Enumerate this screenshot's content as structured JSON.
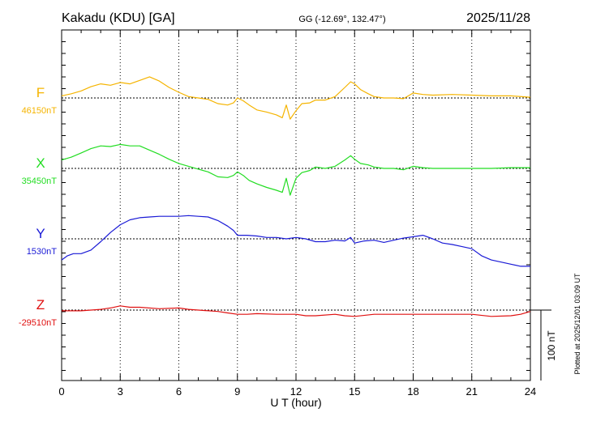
{
  "header": {
    "station": "Kakadu (KDU)  [GA]",
    "coords": "GG (-12.69°, 132.47°)",
    "date": "2025/11/28"
  },
  "footer": {
    "plotted": "Plotted at 2025/12/01 03:09 UT"
  },
  "chart_data": {
    "type": "line",
    "xlabel": "U T (hour)",
    "xlim": [
      0,
      24
    ],
    "xticks": [
      0,
      3,
      6,
      9,
      12,
      15,
      18,
      21,
      24
    ],
    "scale_bar": {
      "label": "100 nT",
      "value_nT": 100
    },
    "colors": {
      "F": "#f5b400",
      "X": "#22dd22",
      "Y": "#1a1ad6",
      "Z": "#e01010"
    },
    "series": [
      {
        "name": "F",
        "baseline_label": "46150nT",
        "baseline_nT": 46150,
        "x": [
          0,
          0.5,
          1,
          1.5,
          2,
          2.5,
          3,
          3.5,
          4,
          4.5,
          5,
          5.5,
          6,
          6.5,
          7,
          7.5,
          8,
          8.5,
          8.8,
          9,
          9.3,
          9.6,
          10,
          10.5,
          11,
          11.3,
          11.5,
          11.7,
          12,
          12.3,
          12.7,
          13,
          13.5,
          14,
          14.5,
          14.8,
          15,
          15.3,
          15.7,
          16,
          16.5,
          17,
          17.5,
          18,
          18.5,
          19,
          20,
          21,
          22,
          23,
          24
        ],
        "values": [
          46153,
          46156,
          46160,
          46166,
          46170,
          46168,
          46172,
          46170,
          46175,
          46180,
          46174,
          46165,
          46158,
          46152,
          46150,
          46148,
          46142,
          46140,
          46143,
          46150,
          46146,
          46140,
          46133,
          46130,
          46126,
          46122,
          46140,
          46120,
          46132,
          46142,
          46143,
          46147,
          46147,
          46152,
          46165,
          46173,
          46170,
          46162,
          46156,
          46152,
          46150,
          46150,
          46149,
          46157,
          46155,
          46154,
          46155,
          46154,
          46153,
          46153,
          46151
        ]
      },
      {
        "name": "X",
        "baseline_label": "35450nT",
        "baseline_nT": 35450,
        "x": [
          0,
          0.5,
          1,
          1.5,
          2,
          2.5,
          3,
          3.5,
          4,
          4.5,
          5,
          5.5,
          6,
          6.5,
          7,
          7.5,
          8,
          8.5,
          8.8,
          9,
          9.3,
          9.6,
          10,
          10.5,
          11,
          11.3,
          11.5,
          11.7,
          12,
          12.3,
          12.7,
          13,
          13.5,
          14,
          14.5,
          14.8,
          15,
          15.3,
          15.7,
          16,
          16.5,
          17,
          17.5,
          18,
          18.5,
          19,
          20,
          21,
          22,
          23,
          24
        ],
        "values": [
          35462,
          35466,
          35472,
          35478,
          35482,
          35481,
          35484,
          35482,
          35482,
          35476,
          35470,
          35463,
          35457,
          35453,
          35449,
          35445,
          35438,
          35437,
          35440,
          35445,
          35440,
          35433,
          35428,
          35423,
          35419,
          35416,
          35436,
          35412,
          35436,
          35444,
          35447,
          35452,
          35450,
          35453,
          35462,
          35468,
          35463,
          35457,
          35455,
          35452,
          35450,
          35450,
          35448,
          35453,
          35451,
          35450,
          35450,
          35450,
          35450,
          35451,
          35451
        ]
      },
      {
        "name": "Y",
        "baseline_label": "1530nT",
        "baseline_nT": 1530,
        "x": [
          0,
          0.3,
          0.6,
          1,
          1.5,
          2,
          2.5,
          3,
          3.5,
          4,
          4.5,
          5,
          5.5,
          6,
          6.5,
          7,
          7.5,
          8,
          8.5,
          8.8,
          9,
          9.5,
          10,
          10.5,
          11,
          11.5,
          12,
          12.5,
          13,
          13.5,
          14,
          14.5,
          14.8,
          15,
          15.5,
          16,
          16.5,
          17,
          17.5,
          18,
          18.5,
          19,
          19.5,
          20,
          20.5,
          21,
          21.5,
          22,
          22.5,
          23,
          23.5,
          24
        ],
        "values": [
          1500,
          1506,
          1509,
          1509,
          1514,
          1526,
          1539,
          1550,
          1557,
          1560,
          1561,
          1562,
          1562,
          1562,
          1563,
          1562,
          1561,
          1556,
          1548,
          1542,
          1535,
          1535,
          1534,
          1532,
          1532,
          1530,
          1532,
          1530,
          1526,
          1526,
          1528,
          1527,
          1532,
          1524,
          1527,
          1528,
          1525,
          1528,
          1531,
          1533,
          1535,
          1530,
          1524,
          1522,
          1519,
          1516,
          1506,
          1500,
          1497,
          1494,
          1491,
          1491
        ]
      },
      {
        "name": "Z",
        "baseline_label": "-29510nT",
        "baseline_nT": -29510,
        "x": [
          0,
          1,
          2,
          2.5,
          3,
          3.5,
          4,
          5,
          6,
          6.5,
          7,
          8,
          8.5,
          9,
          9.5,
          10,
          11,
          12,
          12.5,
          13,
          14,
          14.5,
          15,
          16,
          17,
          18,
          19,
          20,
          21,
          22,
          23,
          23.5,
          24
        ],
        "values": [
          -29511,
          -29511,
          -29509,
          -29507,
          -29504,
          -29506,
          -29506,
          -29508,
          -29507,
          -29509,
          -29510,
          -29512,
          -29514,
          -29516,
          -29516,
          -29515,
          -29516,
          -29516,
          -29518,
          -29518,
          -29516,
          -29518,
          -29519,
          -29516,
          -29516,
          -29516,
          -29516,
          -29516,
          -29516,
          -29519,
          -29518,
          -29516,
          -29512
        ]
      }
    ]
  }
}
